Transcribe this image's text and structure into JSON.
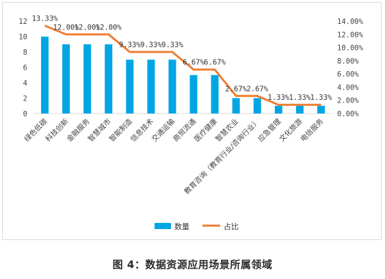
{
  "chart_data": {
    "type": "bar",
    "categories": [
      "绿色低碳",
      "科技创新",
      "金融服务",
      "智慧城市",
      "智能制造",
      "信息技术",
      "交通运输",
      "商贸流通",
      "医疗健康",
      "智慧农业",
      "教育咨询（教育行业/咨询行业）",
      "应急管理",
      "文化旅游",
      "电信服务"
    ],
    "series": [
      {
        "name": "数量",
        "type": "bar",
        "axis": "left",
        "color": "#00a6e3",
        "values": [
          10,
          9,
          9,
          9,
          7,
          7,
          7,
          5,
          5,
          2,
          2,
          1,
          1,
          1
        ]
      },
      {
        "name": "占比",
        "type": "line",
        "axis": "right",
        "color": "#ed7d31",
        "values": [
          13.33,
          12.0,
          12.0,
          12.0,
          9.33,
          9.33,
          9.33,
          6.67,
          6.67,
          2.67,
          2.67,
          1.33,
          1.33,
          1.33
        ],
        "labels": [
          "13.33%",
          "12.00%",
          "12.00%",
          "12.00%",
          "9.33%",
          "9.33%",
          "9.33%",
          "6.67%",
          "6.67%",
          "2.67%",
          "2.67%",
          "1.33%",
          "1.33%",
          "1.33%"
        ]
      }
    ],
    "y_left": {
      "min": 0,
      "max": 12,
      "ticks": [
        "0",
        "2",
        "4",
        "6",
        "8",
        "10",
        "12"
      ]
    },
    "y_right": {
      "min": 0,
      "max": 14,
      "ticks": [
        "0.00%",
        "2.00%",
        "4.00%",
        "6.00%",
        "8.00%",
        "10.00%",
        "12.00%",
        "14.00%"
      ]
    },
    "grid": false,
    "legend_position": "bottom",
    "legend": [
      "数量",
      "占比"
    ]
  },
  "caption": "图 4：数据资源应用场景所属领域"
}
